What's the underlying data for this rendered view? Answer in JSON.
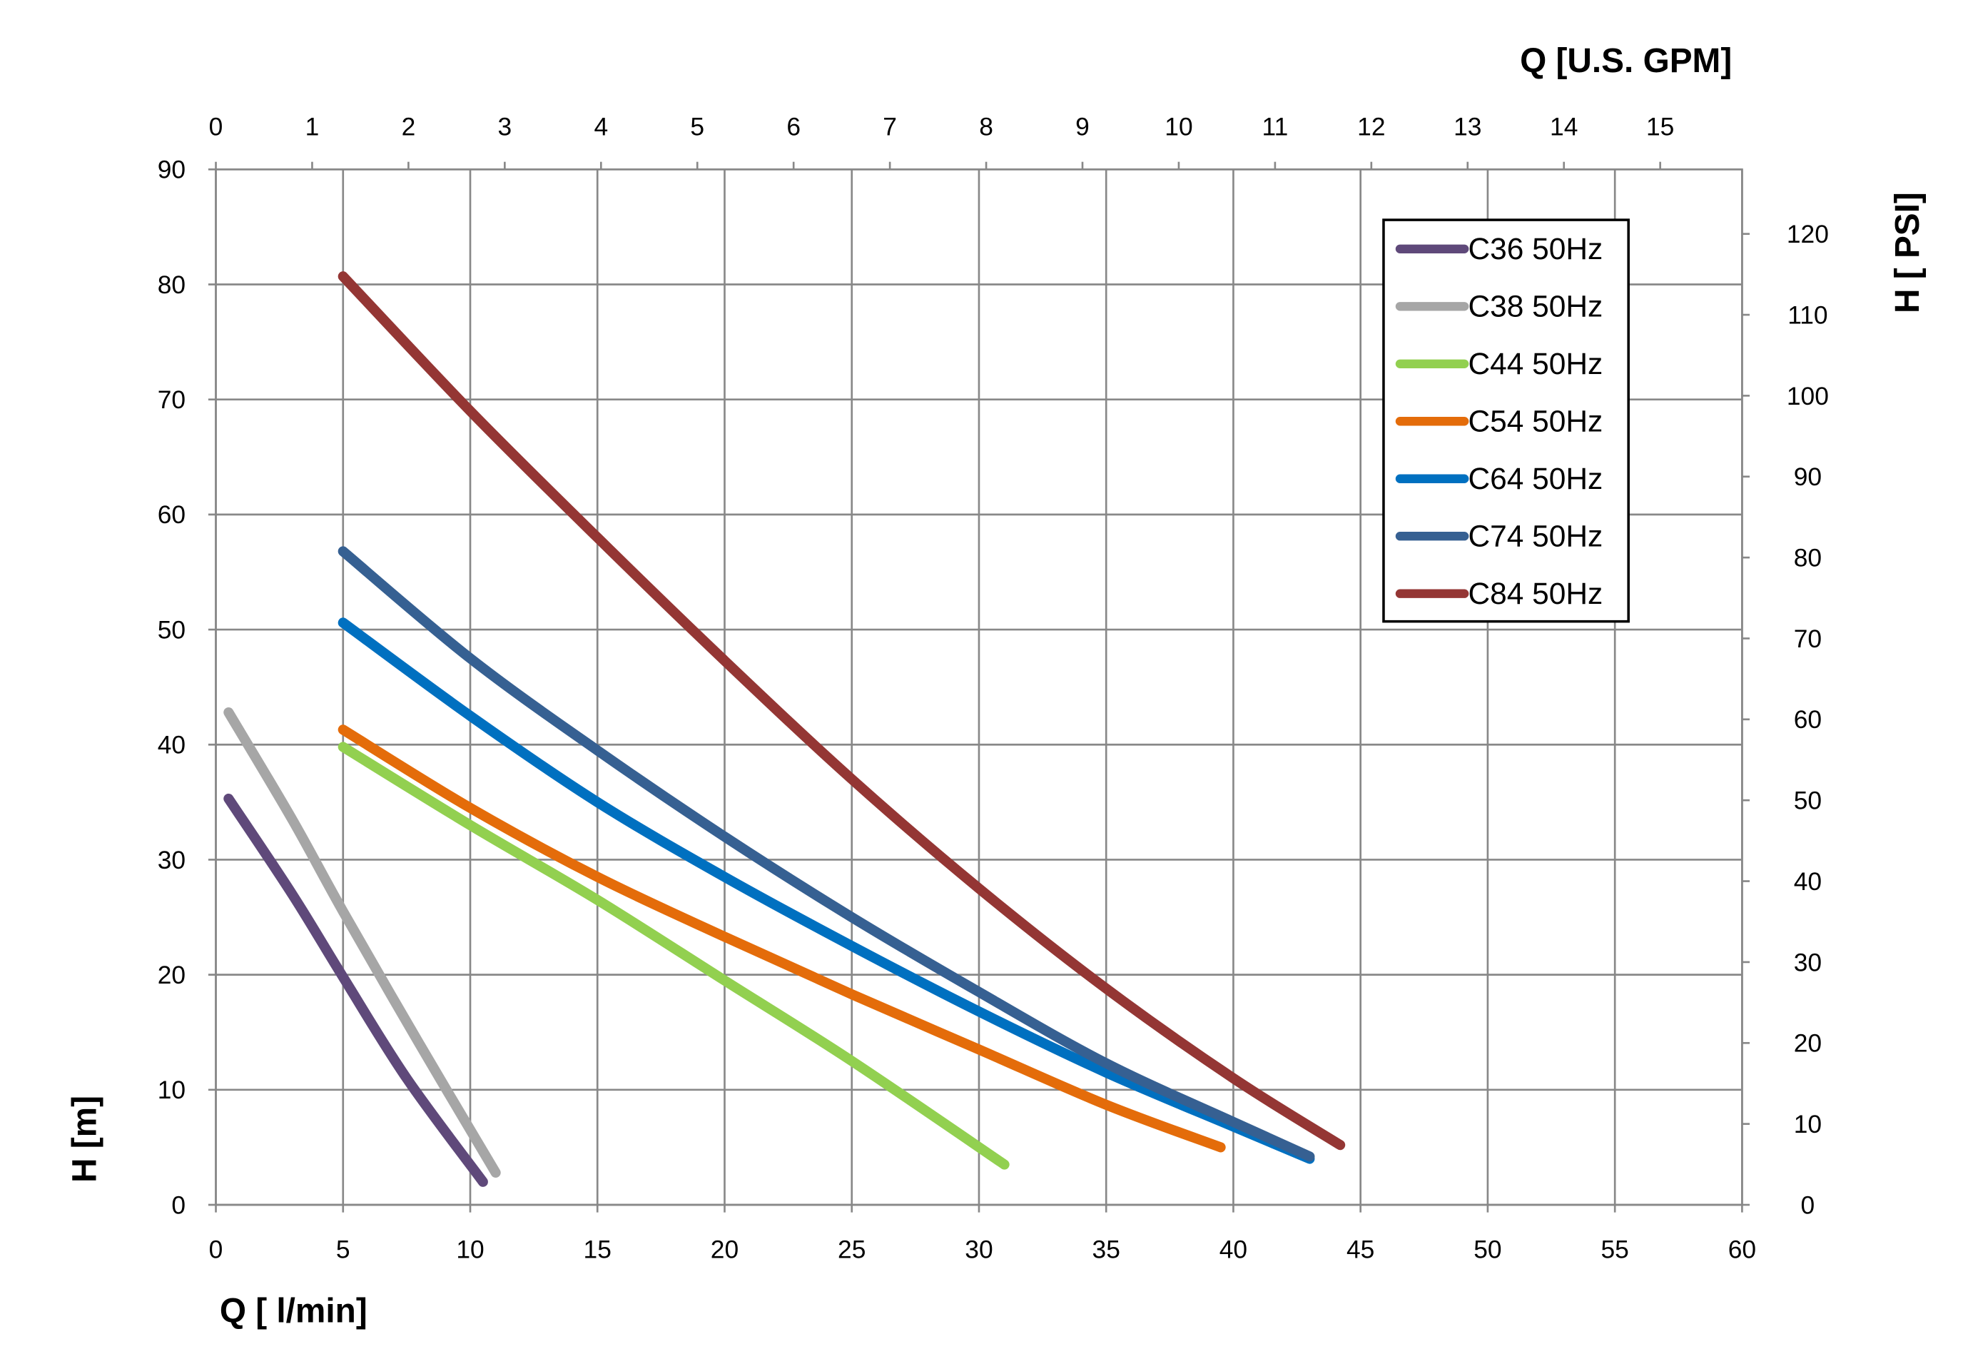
{
  "chart_data": {
    "type": "line",
    "title": "",
    "xlabel": "Q [ l/min]",
    "ylabel": "H [m]",
    "x2label": "Q  [U.S. GPM]",
    "y2label": "H [ PSI]",
    "xlim": [
      0,
      60
    ],
    "ylim": [
      0,
      90
    ],
    "x2lim": [
      0,
      15.85
    ],
    "y2lim": [
      0,
      128
    ],
    "xticks": [
      0,
      5,
      10,
      15,
      20,
      25,
      30,
      35,
      40,
      45,
      50,
      55,
      60
    ],
    "yticks": [
      0,
      10,
      20,
      30,
      40,
      50,
      60,
      70,
      80,
      90
    ],
    "x2ticks": [
      0,
      1,
      2,
      3,
      4,
      5,
      6,
      7,
      8,
      9,
      10,
      11,
      12,
      13,
      14,
      15
    ],
    "y2ticks": [
      0,
      10,
      20,
      30,
      40,
      50,
      60,
      70,
      80,
      90,
      100,
      110,
      120
    ],
    "grid": true,
    "legend_position": "top-right",
    "series": [
      {
        "name": "C36 50Hz",
        "color": "#5f497a",
        "points": [
          [
            0.5,
            35.3
          ],
          [
            3,
            27
          ],
          [
            5,
            19.8
          ],
          [
            7.5,
            11
          ],
          [
            10.5,
            2
          ]
        ]
      },
      {
        "name": "C38 50Hz",
        "color": "#a6a6a6",
        "points": [
          [
            0.5,
            42.8
          ],
          [
            3,
            33.5
          ],
          [
            5,
            25.5
          ],
          [
            8,
            14
          ],
          [
            11,
            2.8
          ]
        ]
      },
      {
        "name": "C44 50Hz",
        "color": "#92d050",
        "points": [
          [
            5,
            39.8
          ],
          [
            10,
            33
          ],
          [
            15,
            26.5
          ],
          [
            20,
            19.5
          ],
          [
            25,
            12.5
          ],
          [
            31,
            3.5
          ]
        ]
      },
      {
        "name": "C54 50Hz",
        "color": "#e46c0a",
        "points": [
          [
            5,
            41.3
          ],
          [
            10,
            34.5
          ],
          [
            15,
            28.5
          ],
          [
            20,
            23.3
          ],
          [
            25,
            18.3
          ],
          [
            30,
            13.5
          ],
          [
            35,
            8.7
          ],
          [
            39.5,
            5
          ]
        ]
      },
      {
        "name": "C64 50Hz",
        "color": "#0070c0",
        "points": [
          [
            5,
            50.6
          ],
          [
            10,
            42.5
          ],
          [
            15,
            35
          ],
          [
            20,
            28.5
          ],
          [
            25,
            22.5
          ],
          [
            30,
            16.8
          ],
          [
            35,
            11.5
          ],
          [
            40,
            6.8
          ],
          [
            43,
            4
          ]
        ]
      },
      {
        "name": "C74 50Hz",
        "color": "#366092",
        "points": [
          [
            5,
            56.8
          ],
          [
            10,
            47.5
          ],
          [
            15,
            39.5
          ],
          [
            20,
            32
          ],
          [
            25,
            25
          ],
          [
            30,
            18.5
          ],
          [
            35,
            12.3
          ],
          [
            40,
            7.2
          ],
          [
            43,
            4.2
          ]
        ]
      },
      {
        "name": "C84 50Hz",
        "color": "#943634",
        "points": [
          [
            5,
            80.7
          ],
          [
            10,
            69
          ],
          [
            15,
            58
          ],
          [
            20,
            47.3
          ],
          [
            25,
            37
          ],
          [
            30,
            27.5
          ],
          [
            35,
            18.8
          ],
          [
            40,
            11
          ],
          [
            44.2,
            5.2
          ]
        ]
      }
    ]
  }
}
